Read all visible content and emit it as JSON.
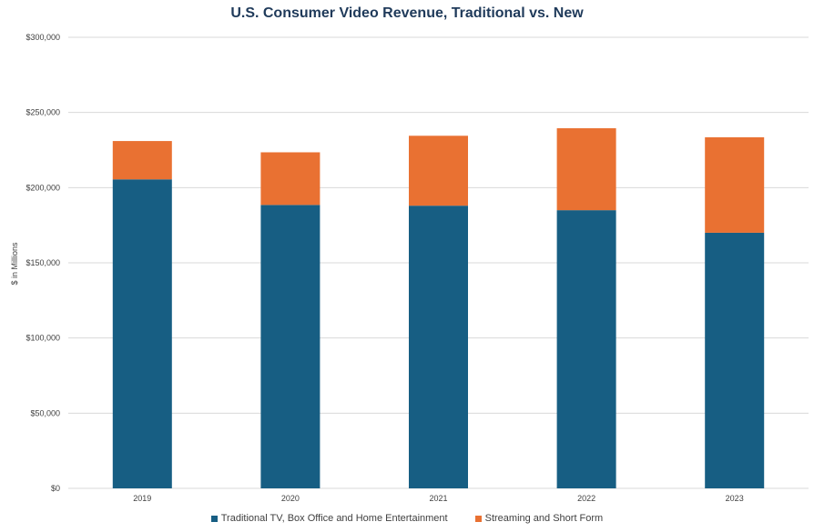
{
  "chart_data": {
    "type": "bar",
    "stacked": true,
    "title": "U.S. Consumer Video Revenue, Traditional vs. New",
    "xlabel": "",
    "ylabel": "$ in Millions",
    "ylim": [
      0,
      300000
    ],
    "yticks": [
      0,
      50000,
      100000,
      150000,
      200000,
      250000,
      300000
    ],
    "ytick_labels": [
      "$0",
      "$50,000",
      "$100,000",
      "$150,000",
      "$200,000",
      "$250,000",
      "$300,000"
    ],
    "categories": [
      "2019",
      "2020",
      "2021",
      "2022",
      "2023"
    ],
    "series": [
      {
        "name": "Traditional TV, Box Office and Home Entertainment",
        "color": "#175e83",
        "values": [
          205500,
          188500,
          188000,
          185000,
          170000
        ]
      },
      {
        "name": "Streaming and Short Form",
        "color": "#e97132",
        "values": [
          25500,
          35000,
          46500,
          54500,
          63500
        ]
      }
    ],
    "grid": true,
    "legend_position": "bottom"
  }
}
